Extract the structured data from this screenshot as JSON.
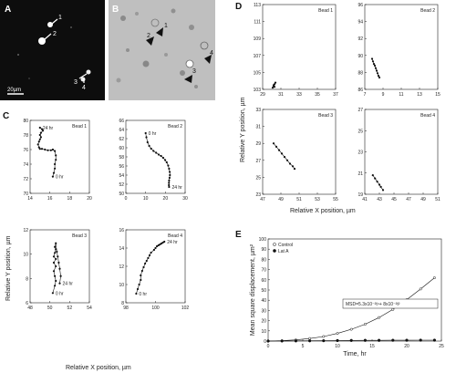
{
  "panels": {
    "A": {
      "letter": "A",
      "arrow_labels": [
        "1",
        "2",
        "3",
        "4"
      ],
      "scale_label": "20µm"
    },
    "B": {
      "letter": "B",
      "arrow_labels": [
        "1",
        "2",
        "3",
        "4"
      ]
    },
    "C": {
      "letter": "C",
      "ylabel": "Relative Y position, µm",
      "xlabel": "Relative X position, µm"
    },
    "D": {
      "letter": "D",
      "ylabel": "Relative Y position, µm",
      "xlabel": "Relative X position, µm"
    },
    "E": {
      "letter": "E"
    }
  },
  "chart_data": [
    {
      "id": "C-bead1",
      "type": "scatter",
      "title": "Bead 1",
      "xlim": [
        14,
        20
      ],
      "ylim": [
        70,
        80
      ],
      "xticks": [
        "14",
        "16",
        "18",
        "20"
      ],
      "yticks": [
        "70",
        "72",
        "74",
        "76",
        "78",
        "80"
      ],
      "start_label": "0 hr",
      "end_label": "24 hr",
      "x": [
        16.3,
        16.4,
        16.5,
        16.5,
        16.6,
        16.6,
        16.5,
        16.3,
        16.1,
        15.8,
        15.5,
        15.2,
        15.0,
        14.9,
        14.8,
        14.9,
        15.0,
        15.1,
        15.0,
        15.1,
        15.3,
        15.2,
        15.0
      ],
      "y": [
        72.3,
        72.8,
        73.4,
        74.0,
        74.6,
        75.2,
        75.8,
        76.0,
        75.9,
        75.9,
        76.0,
        76.1,
        76.1,
        76.3,
        76.7,
        77.1,
        77.4,
        77.7,
        78.0,
        78.3,
        78.6,
        78.8,
        79.0
      ]
    },
    {
      "id": "C-bead2",
      "type": "scatter",
      "title": "Bead 2",
      "xlim": [
        0,
        30
      ],
      "ylim": [
        50,
        66
      ],
      "xticks": [
        "0",
        "10",
        "20",
        "30"
      ],
      "yticks": [
        "50",
        "52",
        "54",
        "56",
        "58",
        "60",
        "62",
        "64",
        "66"
      ],
      "start_label": "0 hr",
      "end_label": "24 hr",
      "x": [
        10.0,
        10.4,
        11.0,
        11.8,
        12.8,
        14.0,
        15.3,
        16.6,
        17.8,
        18.9,
        19.9,
        20.7,
        21.4,
        21.9,
        22.2,
        22.3,
        22.1,
        21.9,
        21.8,
        21.8,
        21.9
      ],
      "y": [
        63.2,
        62.3,
        61.2,
        60.4,
        59.8,
        59.3,
        58.9,
        58.5,
        58.2,
        57.8,
        57.3,
        56.8,
        56.1,
        55.4,
        54.7,
        54.0,
        53.4,
        52.8,
        52.3,
        51.8,
        51.4
      ]
    },
    {
      "id": "C-bead3",
      "type": "scatter",
      "title": "Bead 3",
      "xlim": [
        48,
        54
      ],
      "ylim": [
        6,
        12
      ],
      "xticks": [
        "48",
        "50",
        "52",
        "54"
      ],
      "yticks": [
        "6",
        "8",
        "10",
        "12"
      ],
      "start_label": "0 hr",
      "end_label": "24 hr",
      "x": [
        50.3,
        50.5,
        50.6,
        50.5,
        50.4,
        50.6,
        50.4,
        50.6,
        50.4,
        50.5,
        50.6,
        50.5,
        50.6,
        50.7,
        50.8,
        50.9,
        51.0,
        51.1,
        51.0
      ],
      "y": [
        6.8,
        7.4,
        7.8,
        8.2,
        8.6,
        9.0,
        9.3,
        9.6,
        9.8,
        10.1,
        10.4,
        10.6,
        10.9,
        10.2,
        9.8,
        9.3,
        8.8,
        8.2,
        7.6
      ]
    },
    {
      "id": "C-bead4",
      "type": "scatter",
      "title": "Bead 4",
      "xlim": [
        98,
        102
      ],
      "ylim": [
        8,
        16
      ],
      "xticks": [
        "98",
        "100",
        "102"
      ],
      "yticks": [
        "8",
        "10",
        "12",
        "14",
        "16"
      ],
      "start_label": "0 hr",
      "end_label": "24 hr",
      "x": [
        98.7,
        98.8,
        98.9,
        99.0,
        99.0,
        99.1,
        99.2,
        99.3,
        99.4,
        99.5,
        99.6,
        99.7,
        99.9,
        100.0,
        100.1,
        100.2,
        100.3,
        100.4,
        100.5,
        100.6
      ],
      "y": [
        9.0,
        9.5,
        10.0,
        10.5,
        11.0,
        11.5,
        11.9,
        12.3,
        12.6,
        12.9,
        13.2,
        13.5,
        13.8,
        14.0,
        14.2,
        14.3,
        14.4,
        14.5,
        14.6,
        14.7
      ]
    },
    {
      "id": "D-bead1",
      "type": "scatter",
      "title": "Bead 1",
      "xlim": [
        29,
        37
      ],
      "ylim": [
        103,
        113
      ],
      "xticks": [
        "29",
        "31",
        "33",
        "35",
        "37"
      ],
      "yticks": [
        "103",
        "105",
        "107",
        "109",
        "111",
        "113"
      ],
      "x": [
        30.1,
        30.2,
        30.3,
        30.4,
        30.2,
        30.3
      ],
      "y": [
        103.2,
        103.4,
        103.6,
        103.8,
        103.5,
        103.3
      ]
    },
    {
      "id": "D-bead2",
      "type": "scatter",
      "title": "Bead 2",
      "xlim": [
        7,
        15
      ],
      "ylim": [
        86,
        96
      ],
      "xticks": [
        "7",
        "9",
        "11",
        "13",
        "15"
      ],
      "yticks": [
        "86",
        "88",
        "90",
        "92",
        "94",
        "96"
      ],
      "x": [
        7.8,
        7.9,
        8.0,
        8.1,
        8.2,
        8.3,
        8.4,
        8.5,
        8.6
      ],
      "y": [
        89.6,
        89.3,
        89.0,
        88.8,
        88.5,
        88.2,
        87.9,
        87.6,
        87.4
      ]
    },
    {
      "id": "D-bead3",
      "type": "scatter",
      "title": "Bead 3",
      "xlim": [
        47,
        55
      ],
      "ylim": [
        23,
        33
      ],
      "xticks": [
        "47",
        "49",
        "51",
        "53",
        "55"
      ],
      "yticks": [
        "23",
        "25",
        "27",
        "29",
        "31",
        "33"
      ],
      "x": [
        48.2,
        48.5,
        48.8,
        49.1,
        49.4,
        49.7,
        50.0,
        50.3,
        50.5
      ],
      "y": [
        29.0,
        28.6,
        28.2,
        27.8,
        27.4,
        27.0,
        26.6,
        26.3,
        26.0
      ]
    },
    {
      "id": "D-bead4",
      "type": "scatter",
      "title": "Bead 4",
      "xlim": [
        41,
        51
      ],
      "ylim": [
        19,
        27
      ],
      "xticks": [
        "41",
        "43",
        "45",
        "47",
        "49",
        "51"
      ],
      "yticks": [
        "19",
        "21",
        "23",
        "25",
        "27"
      ],
      "x": [
        42.1,
        42.4,
        42.7,
        43.0,
        43.2,
        43.5
      ],
      "y": [
        20.8,
        20.5,
        20.2,
        19.9,
        19.7,
        19.4
      ]
    },
    {
      "id": "E-msd",
      "type": "line",
      "xlabel": "Time, hr",
      "ylabel": "Mean square displacement, µm²",
      "xlim": [
        0,
        25
      ],
      "ylim": [
        0,
        100
      ],
      "xticks": [
        "0",
        "5",
        "10",
        "15",
        "20",
        "25"
      ],
      "yticks": [
        "0",
        "10",
        "20",
        "30",
        "40",
        "50",
        "60",
        "70",
        "80",
        "90",
        "100"
      ],
      "legend": [
        "Control",
        "Lat A"
      ],
      "legend_position": "top-left",
      "annotation": "MSD=5.3x10⁻²t⁴+ 8x10⁻²t²",
      "series": [
        {
          "name": "Control",
          "x": [
            0,
            2,
            4,
            6,
            8,
            10,
            12,
            14,
            16,
            18,
            20,
            22,
            24
          ],
          "y": [
            0,
            0.4,
            1.2,
            2.5,
            4.5,
            7.5,
            11.5,
            16.5,
            23,
            31,
            40.5,
            51,
            62
          ]
        },
        {
          "name": "Lat A",
          "x": [
            0,
            2,
            4,
            6,
            8,
            10,
            12,
            14,
            16,
            18,
            20,
            22,
            24
          ],
          "y": [
            0,
            0.1,
            0.2,
            0.3,
            0.4,
            0.5,
            0.6,
            0.7,
            0.7,
            0.8,
            0.8,
            0.9,
            0.9
          ]
        }
      ]
    }
  ]
}
